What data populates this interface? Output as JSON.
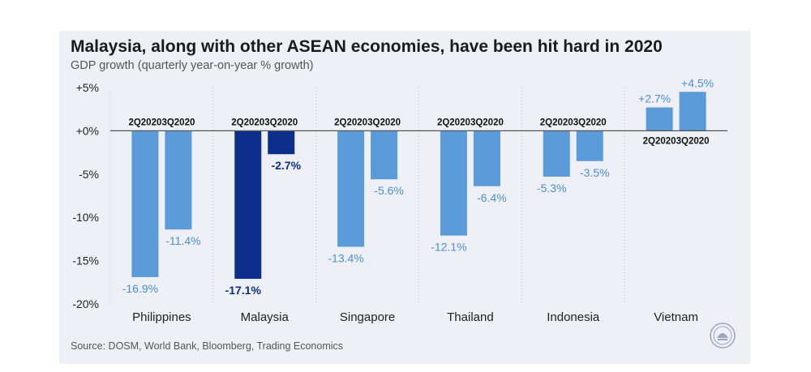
{
  "title": "Malaysia, along with other ASEAN economies, have been hit hard in 2020",
  "subtitle": "GDP growth (quarterly year-on-year % growth)",
  "source": "Source: DOSM, World Bank, Bloomberg, Trading Economics",
  "colors": {
    "panel": "#eef0f5",
    "bar": "#5b9bd9",
    "highlight": "#0d2f8c",
    "label": "#4a8fd6",
    "highlight_label": "#0d2f8c"
  },
  "logo": {
    "icon": "central-bank-seal-icon"
  },
  "chart_data": {
    "type": "bar",
    "categories": [
      "Philippines",
      "Malaysia",
      "Singapore",
      "Thailand",
      "Indonesia",
      "Vietnam"
    ],
    "series": [
      {
        "name": "2Q2020",
        "values": [
          -16.9,
          -17.1,
          -13.4,
          -12.1,
          -5.3,
          2.7
        ]
      },
      {
        "name": "3Q2020",
        "values": [
          -11.4,
          -2.7,
          -5.6,
          -6.4,
          -3.5,
          4.5
        ]
      }
    ],
    "data_labels": [
      [
        "-16.9%",
        "-17.1%",
        "-13.4%",
        "-12.1%",
        "-5.3%",
        "+2.7%"
      ],
      [
        "-11.4%",
        "-2.7%",
        "-5.6%",
        "-6.4%",
        "-3.5%",
        "+4.5%"
      ]
    ],
    "highlight_category": "Malaysia",
    "yticks": [
      5,
      0,
      -5,
      -10,
      -15,
      -20
    ],
    "ytick_labels": [
      "+5%",
      "+0%",
      "-5%",
      "-10%",
      "-15%",
      "-20%"
    ],
    "ylim": [
      -20,
      5
    ],
    "xlabel": "",
    "ylabel": ""
  }
}
